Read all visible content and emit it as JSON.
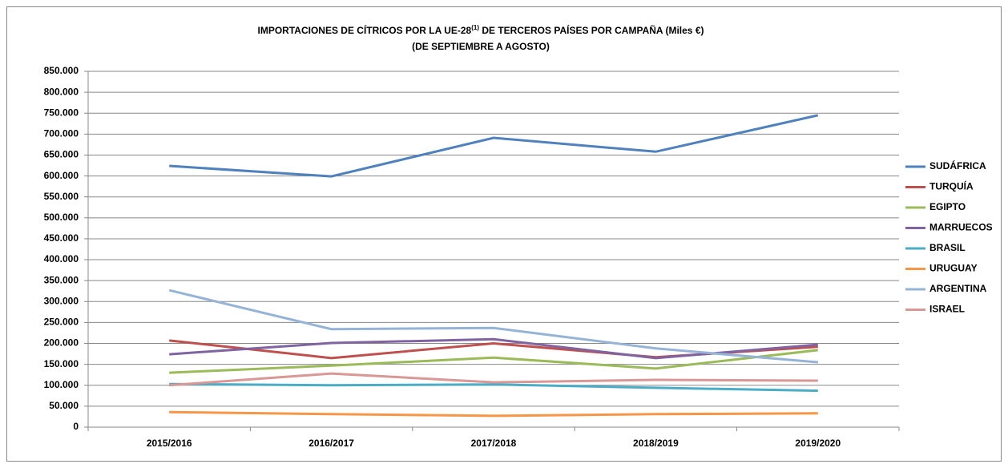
{
  "chart_data": {
    "type": "line",
    "title": [
      "IMPORTACIONES DE CÍTRICOS POR LA UE-28",
      "(1)",
      "  DE TERCEROS PAÍSES POR CAMPAÑA  (Miles €)"
    ],
    "subtitle": "(DE SEPTIEMBRE  A AGOSTO)",
    "categories": [
      "2015/2016",
      "2016/2017",
      "2017/2018",
      "2018/2019",
      "2019/2020"
    ],
    "series": [
      {
        "name": "SUDÁFRICA",
        "color": "#4f81bd",
        "values": [
          624000,
          599000,
          691000,
          658000,
          745000
        ]
      },
      {
        "name": "TURQUÍA",
        "color": "#c0504d",
        "values": [
          207000,
          165000,
          200000,
          167000,
          192000
        ]
      },
      {
        "name": "EGIPTO",
        "color": "#9bbb59",
        "values": [
          130000,
          147000,
          166000,
          140000,
          184000
        ]
      },
      {
        "name": "MARRUECOS",
        "color": "#8064a2",
        "values": [
          174000,
          201000,
          210000,
          165000,
          197000
        ]
      },
      {
        "name": "BRASIL",
        "color": "#4bacc6",
        "values": [
          103000,
          100000,
          102000,
          94000,
          87000
        ]
      },
      {
        "name": "URUGUAY",
        "color": "#f79646",
        "values": [
          36000,
          31000,
          27000,
          31000,
          33000
        ]
      },
      {
        "name": "ARGENTINA",
        "color": "#95b3d7",
        "values": [
          327000,
          234000,
          237000,
          188000,
          155000
        ]
      },
      {
        "name": "ISRAEL",
        "color": "#d99795",
        "values": [
          100000,
          128000,
          107000,
          113000,
          111000
        ]
      }
    ],
    "ylim": [
      0,
      850000
    ],
    "yticks": [
      0,
      {
        "value": 50000,
        "label": "50.000"
      },
      {
        "value": 100000,
        "label": "100.000"
      },
      {
        "value": 150000,
        "label": "150.000"
      },
      {
        "value": 200000,
        "label": "200.000"
      },
      {
        "value": 250000,
        "label": "250.000"
      },
      {
        "value": 300000,
        "label": "300.000"
      },
      {
        "value": 350000,
        "label": "350.000"
      },
      {
        "value": 400000,
        "label": "400.000"
      },
      {
        "value": 450000,
        "label": "450.000"
      },
      {
        "value": 500000,
        "label": "500.000"
      },
      {
        "value": 550000,
        "label": "550.000"
      },
      {
        "value": 600000,
        "label": "600.000"
      },
      {
        "value": 650000,
        "label": "650.000"
      },
      {
        "value": 700000,
        "label": "700.000"
      },
      {
        "value": 750000,
        "label": "750.000"
      },
      {
        "value": 800000,
        "label": "800.000"
      },
      {
        "value": 850000,
        "label": "850.000"
      }
    ],
    "grid": true,
    "legend": "right"
  }
}
